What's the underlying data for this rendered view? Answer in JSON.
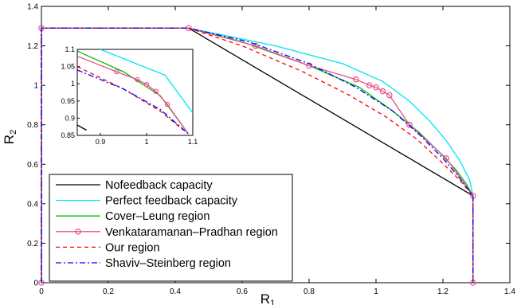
{
  "chart_data": [
    {
      "type": "line",
      "title": "",
      "xlabel": "R",
      "xlabel_sub": "1",
      "ylabel": "R",
      "ylabel_sub": "2",
      "xlim": [
        0,
        1.4
      ],
      "ylim": [
        0,
        1.4
      ],
      "xticks": [
        "0",
        "0.2",
        "0.4",
        "0.6",
        "0.8",
        "1",
        "1.2",
        "1.4"
      ],
      "yticks": [
        "0",
        "0.2",
        "0.4",
        "0.6",
        "0.8",
        "1",
        "1.2",
        "1.4"
      ],
      "grid": false,
      "legend_position": "bottom-left",
      "series": [
        {
          "name": "Nofeedback capacity",
          "color": "#000000",
          "style": "solid",
          "x": [
            0,
            0,
            0.44,
            1.29,
            1.29
          ],
          "y": [
            0,
            1.29,
            1.29,
            0.44,
            0
          ]
        },
        {
          "name": "Perfect feedback capacity",
          "color": "#00e5ee",
          "style": "solid",
          "x": [
            0,
            0,
            0.44,
            0.7,
            0.9,
            1.02,
            1.1,
            1.16,
            1.21,
            1.25,
            1.28,
            1.29,
            1.29
          ],
          "y": [
            0,
            1.29,
            1.29,
            1.2,
            1.11,
            1.02,
            0.92,
            0.82,
            0.72,
            0.62,
            0.52,
            0.44,
            0
          ]
        },
        {
          "name": "Cover–Leung region",
          "color": "#00c000",
          "style": "solid",
          "x": [
            0,
            0,
            0.44,
            0.6,
            0.8,
            0.95,
            1.05,
            1.13,
            1.19,
            1.24,
            1.27,
            1.29,
            1.29
          ],
          "y": [
            0,
            1.29,
            1.29,
            1.22,
            1.1,
            0.99,
            0.87,
            0.76,
            0.66,
            0.57,
            0.5,
            0.44,
            0
          ]
        },
        {
          "name": "Venkataramanan–Pradhan region",
          "color": "#e8508a",
          "style": "solid-circle",
          "x": [
            0,
            0,
            0.44,
            0.64,
            0.8,
            0.94,
            0.98,
            1.0,
            1.02,
            1.04,
            1.1,
            1.21,
            1.29,
            1.29
          ],
          "y": [
            0,
            1.29,
            1.29,
            1.2,
            1.1,
            1.03,
            1.0,
            0.99,
            0.97,
            0.95,
            0.8,
            0.63,
            0.44,
            0
          ]
        },
        {
          "name": "Our region",
          "color": "#ff0000",
          "style": "dashed",
          "x": [
            0,
            0,
            0.44,
            0.6,
            0.78,
            0.92,
            1.03,
            1.12,
            1.19,
            1.25,
            1.29,
            1.29
          ],
          "y": [
            0,
            1.29,
            1.29,
            1.2,
            1.07,
            0.95,
            0.84,
            0.73,
            0.62,
            0.52,
            0.44,
            0
          ]
        },
        {
          "name": "Shaviv–Steinberg region",
          "color": "#0000ff",
          "style": "dashdot",
          "x": [
            0,
            0,
            0.44,
            0.62,
            0.8,
            0.94,
            1.05,
            1.13,
            1.2,
            1.25,
            1.29,
            1.29
          ],
          "y": [
            0,
            1.29,
            1.29,
            1.22,
            1.11,
            0.99,
            0.87,
            0.75,
            0.63,
            0.53,
            0.44,
            0
          ]
        }
      ]
    },
    {
      "type": "line",
      "title": "",
      "xlim": [
        0.85,
        1.1
      ],
      "ylim": [
        0.85,
        1.1
      ],
      "xticks": [
        "0.9",
        "1",
        "1.1"
      ],
      "yticks": [
        "0.85",
        "0.9",
        "0.95",
        "1",
        "1.05",
        "1.1"
      ],
      "grid": false,
      "series": [
        {
          "color": "#000000",
          "style": "solid",
          "x": [
            0.85,
            0.87
          ],
          "y": [
            0.88,
            0.865
          ]
        },
        {
          "color": "#00e5ee",
          "style": "solid",
          "x": [
            0.9,
            1.04,
            1.1
          ],
          "y": [
            1.1,
            1.025,
            0.915
          ]
        },
        {
          "color": "#00c000",
          "style": "solid",
          "x": [
            0.85,
            0.95,
            1.03,
            1.09
          ],
          "y": [
            1.095,
            1.035,
            0.965,
            0.855
          ]
        },
        {
          "color": "#e8508a",
          "style": "solid-circle",
          "x": [
            0.85,
            0.935,
            0.98,
            1.0,
            1.02,
            1.045,
            1.09
          ],
          "y": [
            1.08,
            1.035,
            1.012,
            0.998,
            0.978,
            0.94,
            0.855
          ]
        },
        {
          "color": "#ff0000",
          "style": "dashed",
          "x": [
            0.85,
            0.95,
            1.03,
            1.08
          ],
          "y": [
            1.05,
            0.985,
            0.92,
            0.865
          ]
        },
        {
          "color": "#0000ff",
          "style": "dashdot",
          "x": [
            0.85,
            0.95,
            1.03,
            1.09
          ],
          "y": [
            1.04,
            0.985,
            0.925,
            0.855
          ]
        }
      ]
    }
  ]
}
